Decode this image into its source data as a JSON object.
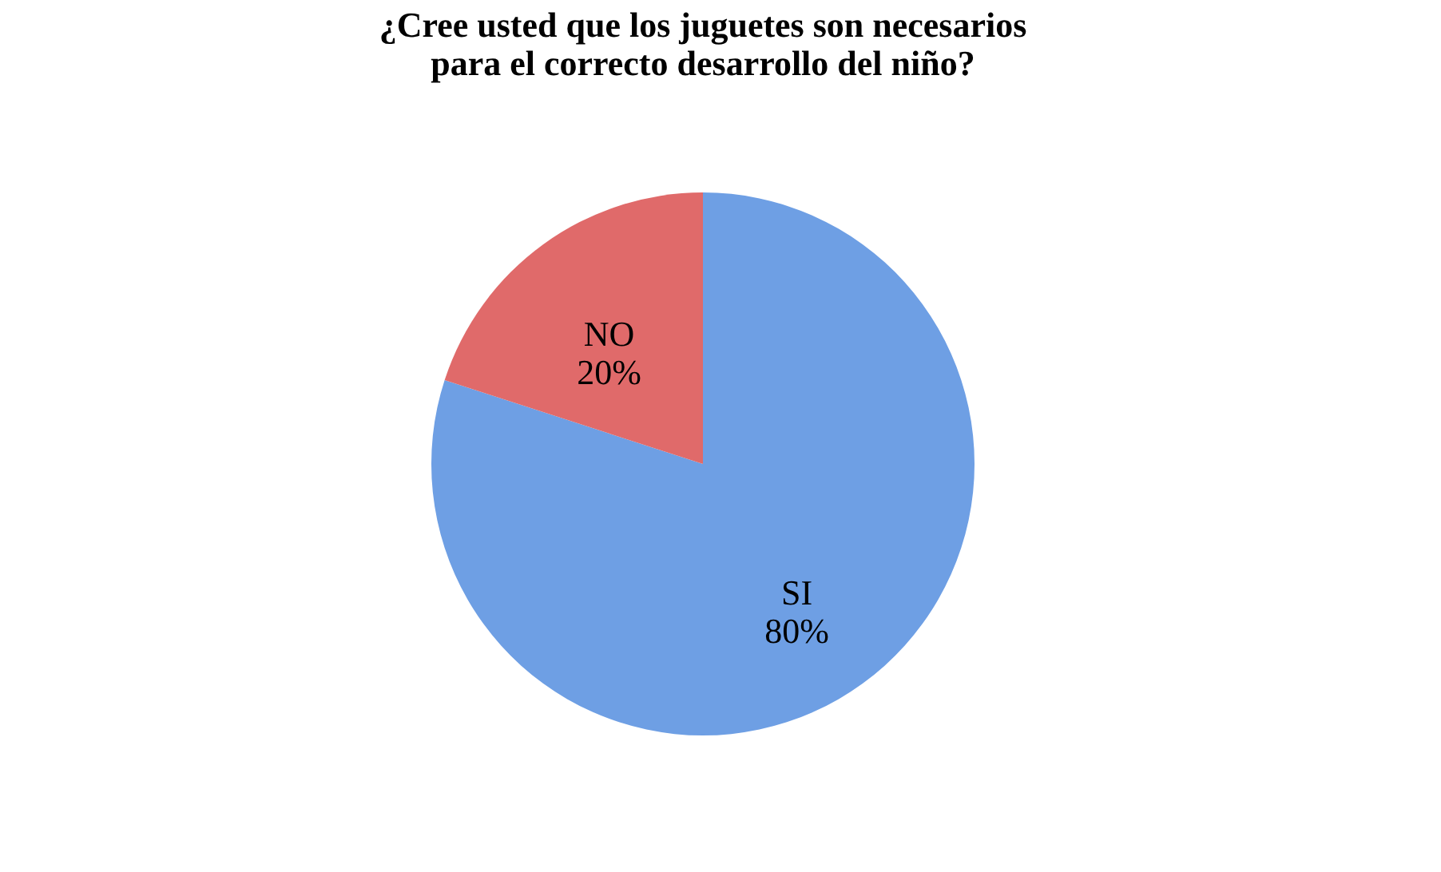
{
  "chart_data": {
    "type": "pie",
    "title": "¿Cree usted que los juguetes son necesarios para el correcto desarrollo del niño?",
    "categories": [
      "SI",
      "NO"
    ],
    "values": [
      80,
      20
    ],
    "colors": [
      "#6e9fe4",
      "#e06a6a"
    ],
    "value_labels": [
      "80%",
      "20%"
    ],
    "legend": false
  }
}
